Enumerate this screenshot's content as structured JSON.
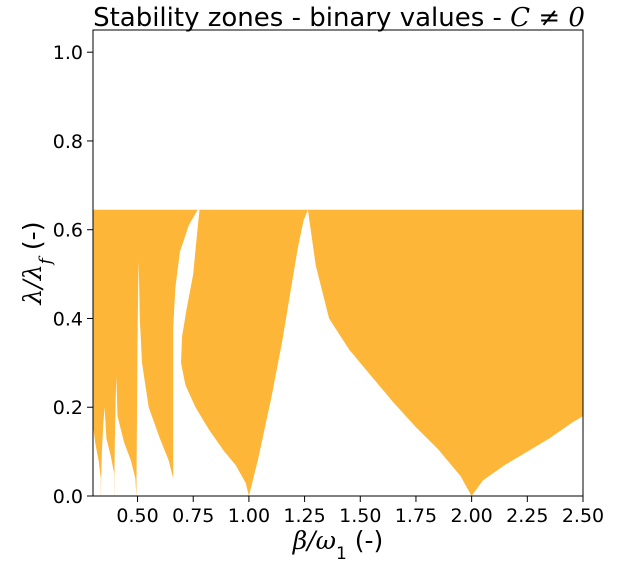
{
  "chart_data": {
    "type": "area",
    "title": "Stability zones - binary values - C ≠ 0",
    "title_parts": {
      "prefix": "Stability zones - binary values - ",
      "math": "C ≠ 0"
    },
    "xlabel": "β/ω₁ (-)",
    "xlabel_parts": {
      "math": "β/ω",
      "sub": "1",
      "unit": " (-)"
    },
    "ylabel": "λ/λ_f (-)",
    "ylabel_parts": {
      "math": "λ/λ",
      "sub": "f",
      "unit": " (-)"
    },
    "xlim": [
      0.3,
      2.5
    ],
    "ylim": [
      0.0,
      1.05
    ],
    "xticks": [
      0.5,
      0.75,
      1.0,
      1.25,
      1.5,
      1.75,
      2.0,
      2.25,
      2.5
    ],
    "xtick_labels": [
      "0.50",
      "0.75",
      "1.00",
      "1.25",
      "1.50",
      "1.75",
      "2.00",
      "2.25",
      "2.50"
    ],
    "yticks": [
      0.0,
      0.2,
      0.4,
      0.6,
      0.8,
      1.0
    ],
    "ytick_labels": [
      "0.0",
      "0.2",
      "0.4",
      "0.6",
      "0.8",
      "1.0"
    ],
    "grid": false,
    "colors": {
      "stable": "#fdb638",
      "background": "#ffffff"
    },
    "stable_region_top": 0.645,
    "unstable_zones": [
      {
        "name": "zone-beta-2.00",
        "points": [
          [
            1.265,
            0.645
          ],
          [
            1.3,
            0.52
          ],
          [
            1.36,
            0.4
          ],
          [
            1.45,
            0.33
          ],
          [
            1.55,
            0.27
          ],
          [
            1.65,
            0.21
          ],
          [
            1.75,
            0.155
          ],
          [
            1.85,
            0.105
          ],
          [
            1.95,
            0.045
          ],
          [
            2.0,
            0.0
          ],
          [
            2.05,
            0.035
          ],
          [
            2.15,
            0.07
          ],
          [
            2.25,
            0.1
          ],
          [
            2.35,
            0.13
          ],
          [
            2.45,
            0.165
          ],
          [
            2.5,
            0.18
          ],
          [
            2.5,
            0.0
          ],
          [
            1.0,
            0.0
          ],
          [
            1.04,
            0.08
          ],
          [
            1.1,
            0.22
          ],
          [
            1.15,
            0.35
          ],
          [
            1.19,
            0.47
          ],
          [
            1.22,
            0.56
          ],
          [
            1.245,
            0.62
          ]
        ]
      },
      {
        "name": "zone-beta-1.00",
        "points": [
          [
            0.778,
            0.645
          ],
          [
            0.765,
            0.58
          ],
          [
            0.75,
            0.5
          ],
          [
            0.72,
            0.42
          ],
          [
            0.7,
            0.36
          ],
          [
            0.695,
            0.3
          ],
          [
            0.715,
            0.25
          ],
          [
            0.76,
            0.2
          ],
          [
            0.82,
            0.15
          ],
          [
            0.89,
            0.1
          ],
          [
            0.94,
            0.07
          ],
          [
            0.985,
            0.03
          ],
          [
            1.0,
            0.0
          ],
          [
            0.66,
            0.0
          ],
          [
            0.66,
            0.38
          ],
          [
            0.67,
            0.47
          ],
          [
            0.69,
            0.55
          ],
          [
            0.73,
            0.61
          ],
          [
            0.77,
            0.645
          ]
        ]
      },
      {
        "name": "zone-beta-0.67",
        "points": [
          [
            0.505,
            0.53
          ],
          [
            0.51,
            0.4
          ],
          [
            0.52,
            0.3
          ],
          [
            0.55,
            0.2
          ],
          [
            0.6,
            0.13
          ],
          [
            0.64,
            0.08
          ],
          [
            0.665,
            0.03
          ],
          [
            0.665,
            0.0
          ],
          [
            0.495,
            0.0
          ],
          [
            0.498,
            0.22
          ],
          [
            0.5,
            0.35
          ],
          [
            0.503,
            0.48
          ]
        ]
      },
      {
        "name": "zone-beta-0.50",
        "points": [
          [
            0.405,
            0.27
          ],
          [
            0.41,
            0.18
          ],
          [
            0.44,
            0.12
          ],
          [
            0.47,
            0.08
          ],
          [
            0.49,
            0.04
          ],
          [
            0.495,
            0.0
          ],
          [
            0.395,
            0.0
          ],
          [
            0.398,
            0.12
          ],
          [
            0.402,
            0.22
          ]
        ]
      },
      {
        "name": "zone-beta-0.40",
        "points": [
          [
            0.352,
            0.2
          ],
          [
            0.36,
            0.13
          ],
          [
            0.38,
            0.09
          ],
          [
            0.395,
            0.05
          ],
          [
            0.395,
            0.0
          ],
          [
            0.335,
            0.0
          ],
          [
            0.34,
            0.1
          ],
          [
            0.346,
            0.16
          ]
        ]
      },
      {
        "name": "zone-beta-0.33",
        "points": [
          [
            0.3,
            0.16
          ],
          [
            0.31,
            0.12
          ],
          [
            0.325,
            0.08
          ],
          [
            0.335,
            0.04
          ],
          [
            0.335,
            0.0
          ],
          [
            0.3,
            0.0
          ]
        ]
      }
    ]
  }
}
